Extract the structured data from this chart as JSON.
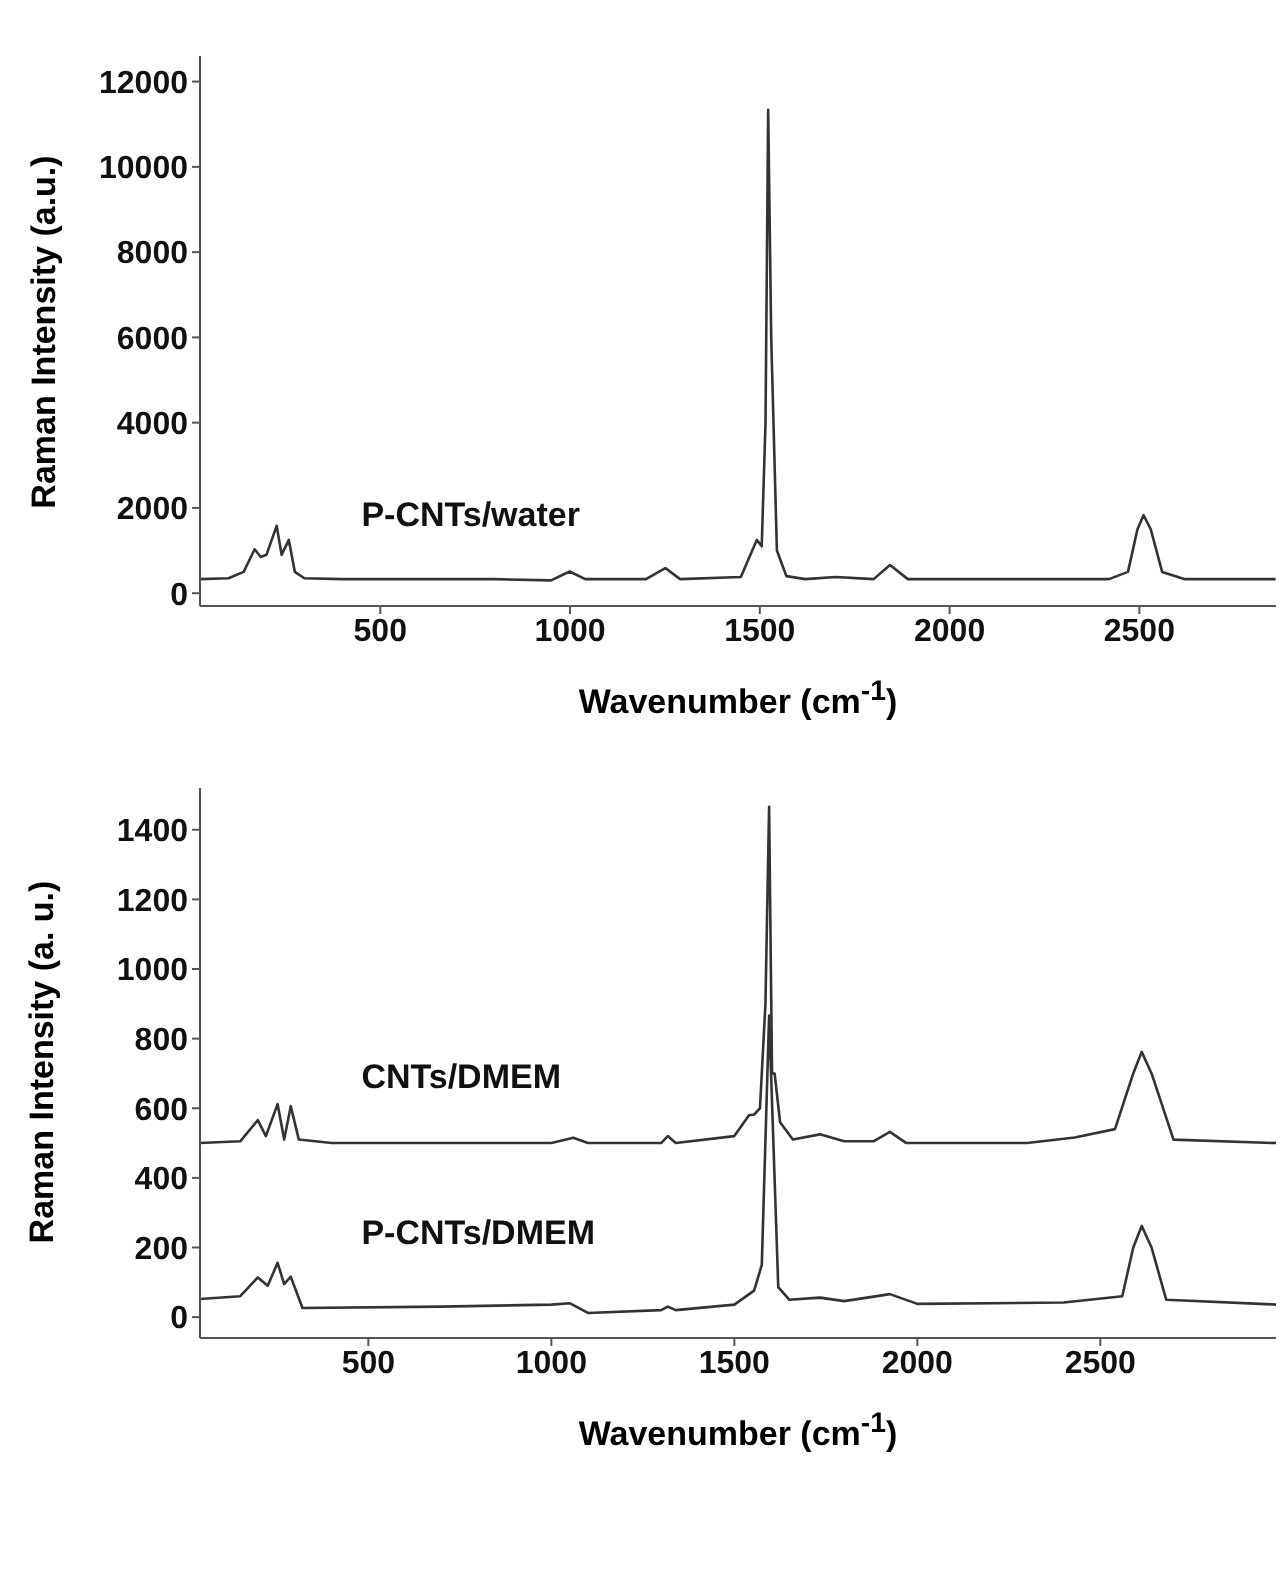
{
  "chart_data": [
    {
      "type": "line",
      "xlabel": "Wavenumber (cm$^{-1}$)",
      "ylabel": "Raman Intensity (a.u.)",
      "xlim": [
        25,
        2860
      ],
      "xticks": [
        500,
        1000,
        1500,
        2000,
        2500
      ],
      "ylim": [
        -300,
        12600
      ],
      "yticks": [
        0,
        2000,
        4000,
        6000,
        8000,
        10000,
        12000
      ],
      "grid": false,
      "legend": false,
      "marker": "none",
      "line_style": "solid",
      "series": [
        {
          "name": "P-CNTs/water",
          "color": "#333333",
          "x": [
            25,
            100,
            140,
            169,
            185,
            200,
            227,
            240,
            259,
            275,
            300,
            400,
            800,
            950,
            999,
            1040,
            1200,
            1251,
            1290,
            1450,
            1480,
            1492,
            1505,
            1515,
            1522,
            1530,
            1545,
            1570,
            1620,
            1700,
            1800,
            1843,
            1890,
            2000,
            2420,
            2470,
            2495,
            2511,
            2530,
            2560,
            2620,
            2859
          ],
          "values": [
            330,
            350,
            500,
            1030,
            850,
            900,
            1580,
            900,
            1250,
            500,
            350,
            330,
            330,
            300,
            510,
            330,
            330,
            590,
            330,
            380,
            1000,
            1250,
            1100,
            4000,
            11340,
            6000,
            1000,
            400,
            330,
            380,
            330,
            660,
            330,
            330,
            330,
            500,
            1500,
            1830,
            1500,
            500,
            330,
            330
          ]
        }
      ]
    },
    {
      "type": "line",
      "xlabel": "Wavenumber (cm$^{-1}$)",
      "ylabel": "Raman Intensity (a. u.)",
      "xlim": [
        40,
        2980
      ],
      "xticks": [
        500,
        1000,
        1500,
        2000,
        2500
      ],
      "ylim": [
        -60,
        1520
      ],
      "yticks": [
        0,
        200,
        400,
        600,
        800,
        1000,
        1200,
        1400
      ],
      "grid": false,
      "legend": false,
      "marker": "none",
      "line_style": "solid",
      "series": [
        {
          "name": "CNTs/DMEM",
          "color": "#333333",
          "x": [
            40,
            150,
            198,
            220,
            252,
            270,
            288,
            310,
            400,
            1000,
            1060,
            1100,
            1300,
            1318,
            1340,
            1500,
            1540,
            1554,
            1570,
            1585,
            1595,
            1603,
            1610,
            1625,
            1660,
            1734,
            1800,
            1880,
            1925,
            1970,
            2300,
            2430,
            2540,
            2590,
            2613,
            2640,
            2700,
            2980
          ],
          "values": [
            500,
            505,
            566,
            520,
            612,
            510,
            606,
            510,
            500,
            500,
            515,
            500,
            500,
            520,
            500,
            520,
            580,
            582,
            600,
            900,
            1466,
            700,
            700,
            560,
            510,
            525,
            505,
            505,
            532,
            500,
            500,
            516,
            540,
            700,
            762,
            700,
            510,
            500
          ]
        },
        {
          "name": "P-CNTs/DMEM",
          "color": "#333333",
          "x": [
            40,
            150,
            198,
            225,
            252,
            270,
            288,
            320,
            700,
            1000,
            1050,
            1100,
            1300,
            1318,
            1340,
            1500,
            1554,
            1575,
            1595,
            1620,
            1650,
            1734,
            1800,
            1925,
            2000,
            2400,
            2560,
            2590,
            2613,
            2640,
            2680,
            2980
          ],
          "values": [
            52,
            60,
            114,
            90,
            156,
            95,
            116,
            26,
            30,
            36,
            40,
            12,
            20,
            30,
            20,
            36,
            76,
            150,
            866,
            86,
            50,
            56,
            46,
            66,
            38,
            42,
            60,
            200,
            262,
            200,
            50,
            36
          ]
        }
      ]
    }
  ]
}
